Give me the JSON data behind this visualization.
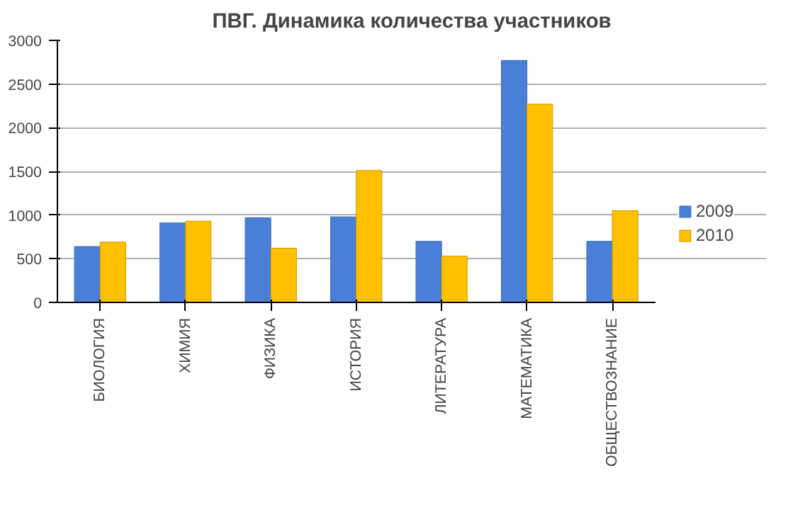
{
  "chart_data": {
    "type": "bar",
    "title": "ПВГ. Динамика количества участников",
    "categories": [
      "БИОЛОГИЯ",
      "ХИМИЯ",
      "ФИЗИКА",
      "ИСТОРИЯ",
      "ЛИТЕРАТУРА",
      "МАТЕМАТИКА",
      "ОБЩЕСТВОЗНАНИЕ"
    ],
    "series": [
      {
        "name": "2009",
        "color": "#4a7fd8",
        "values": [
          640,
          910,
          970,
          980,
          700,
          2770,
          700
        ]
      },
      {
        "name": "2010",
        "color": "#ffc000",
        "values": [
          690,
          930,
          620,
          1510,
          530,
          2270,
          1050
        ]
      }
    ],
    "ylim": [
      0,
      3000
    ],
    "yticks": [
      0,
      500,
      1000,
      1500,
      2000,
      2500,
      3000
    ],
    "grid": "y",
    "legend": "right"
  }
}
